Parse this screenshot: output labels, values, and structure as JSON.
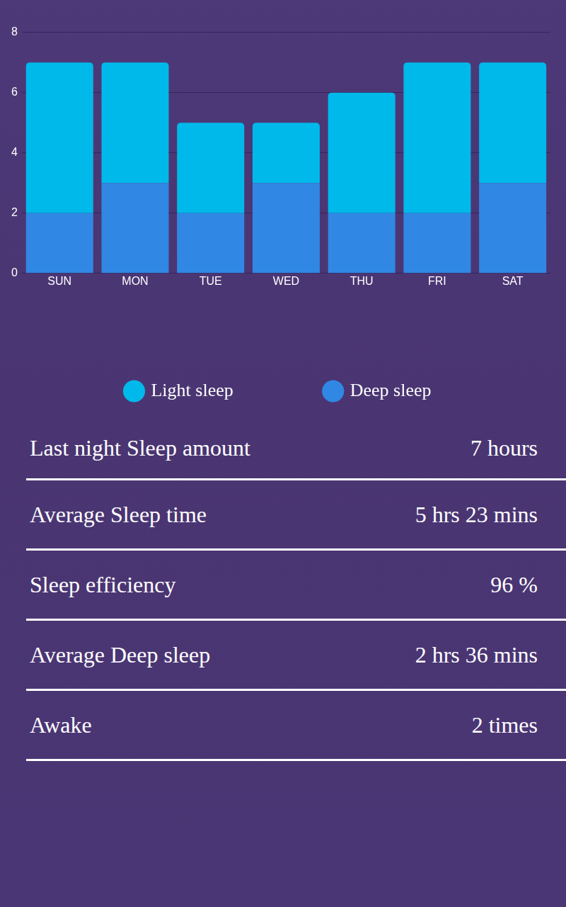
{
  "chart_data": {
    "type": "bar",
    "stacked": true,
    "categories": [
      "SUN",
      "MON",
      "TUE",
      "WED",
      "THU",
      "FRI",
      "SAT"
    ],
    "series": [
      {
        "name": "Light sleep",
        "color": "#00b9eb",
        "values": [
          5,
          4,
          3,
          2,
          4,
          5,
          4
        ]
      },
      {
        "name": "Deep sleep",
        "color": "#3088e4",
        "values": [
          2,
          3,
          2,
          3,
          2,
          2,
          3
        ]
      }
    ],
    "ylim": [
      0,
      8
    ],
    "yticks": [
      0,
      2,
      4,
      6,
      8
    ],
    "grid": true,
    "legend": "bottom"
  },
  "stats": {
    "rows": [
      {
        "label": "Last night Sleep amount",
        "value": "7 hours"
      },
      {
        "label": "Average Sleep time",
        "value": "5 hrs 23 mins"
      },
      {
        "label": "Sleep efficiency",
        "value": "96 %"
      },
      {
        "label": "Average Deep sleep",
        "value": "2 hrs 36 mins"
      },
      {
        "label": "Awake",
        "value": "2 times"
      }
    ]
  }
}
